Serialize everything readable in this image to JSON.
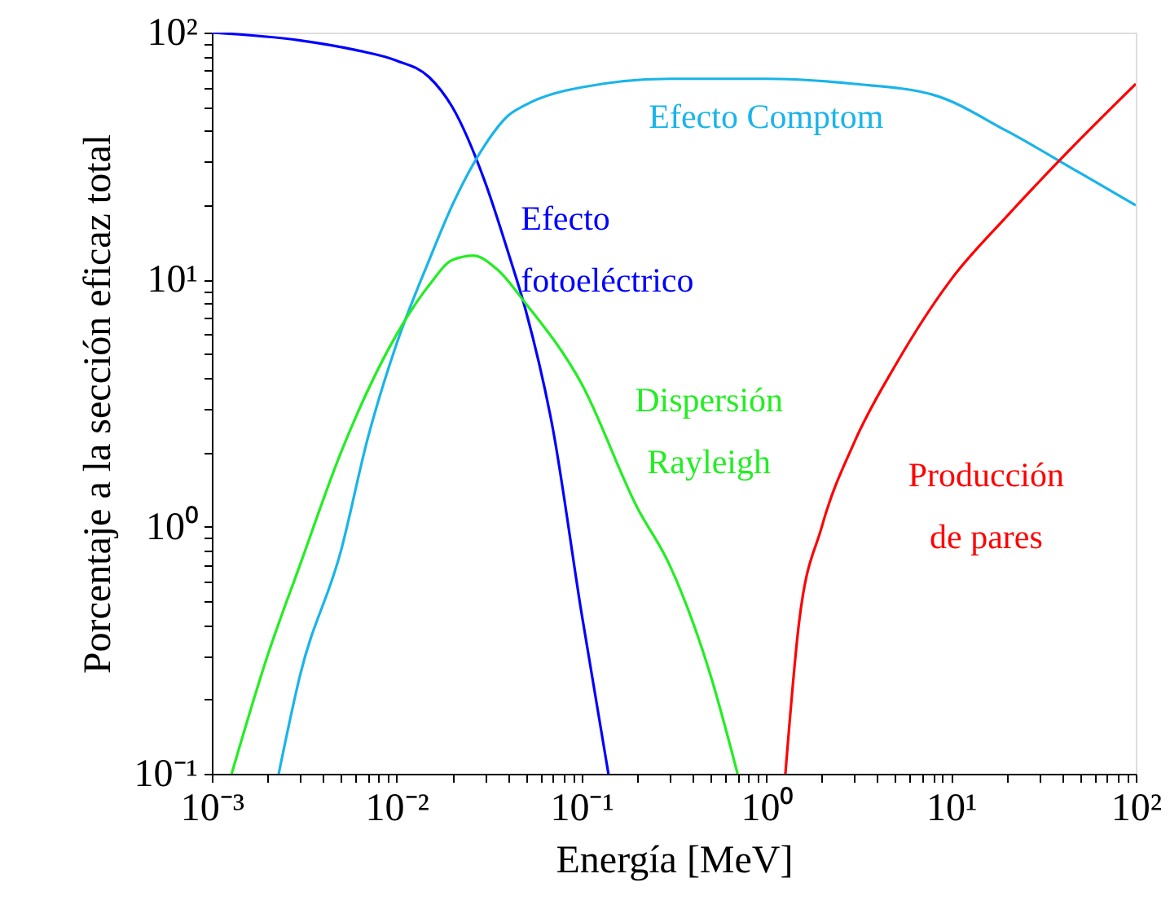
{
  "chart_data": {
    "type": "line",
    "xlabel": "Energía [MeV]",
    "ylabel": "Porcentaje a la sección eficaz total",
    "log": "xy",
    "grid": false,
    "legend": false,
    "line_style": "solid",
    "marker": "none",
    "xlim": [
      0.001,
      100
    ],
    "ylim": [
      0.1,
      100
    ],
    "xticks": [
      {
        "value": 0.001,
        "label": "10⁻³"
      },
      {
        "value": 0.002,
        "label": null
      },
      {
        "value": 0.003,
        "label": null
      },
      {
        "value": 0.004,
        "label": null
      },
      {
        "value": 0.005,
        "label": null
      },
      {
        "value": 0.006,
        "label": null
      },
      {
        "value": 0.007,
        "label": null
      },
      {
        "value": 0.008,
        "label": null
      },
      {
        "value": 0.009,
        "label": null
      },
      {
        "value": 0.01,
        "label": "10⁻²"
      },
      {
        "value": 0.02,
        "label": null
      },
      {
        "value": 0.03,
        "label": null
      },
      {
        "value": 0.04,
        "label": null
      },
      {
        "value": 0.05,
        "label": null
      },
      {
        "value": 0.06,
        "label": null
      },
      {
        "value": 0.07,
        "label": null
      },
      {
        "value": 0.08,
        "label": null
      },
      {
        "value": 0.09,
        "label": null
      },
      {
        "value": 0.1,
        "label": "10⁻¹"
      },
      {
        "value": 0.2,
        "label": null
      },
      {
        "value": 0.3,
        "label": null
      },
      {
        "value": 0.4,
        "label": null
      },
      {
        "value": 0.5,
        "label": null
      },
      {
        "value": 0.6,
        "label": null
      },
      {
        "value": 0.7,
        "label": null
      },
      {
        "value": 0.8,
        "label": null
      },
      {
        "value": 0.9,
        "label": null
      },
      {
        "value": 1,
        "label": "10⁰"
      },
      {
        "value": 2,
        "label": null
      },
      {
        "value": 3,
        "label": null
      },
      {
        "value": 4,
        "label": null
      },
      {
        "value": 5,
        "label": null
      },
      {
        "value": 6,
        "label": null
      },
      {
        "value": 7,
        "label": null
      },
      {
        "value": 8,
        "label": null
      },
      {
        "value": 9,
        "label": null
      },
      {
        "value": 10,
        "label": "10¹"
      },
      {
        "value": 20,
        "label": null
      },
      {
        "value": 30,
        "label": null
      },
      {
        "value": 40,
        "label": null
      },
      {
        "value": 50,
        "label": null
      },
      {
        "value": 60,
        "label": null
      },
      {
        "value": 70,
        "label": null
      },
      {
        "value": 80,
        "label": null
      },
      {
        "value": 90,
        "label": null
      },
      {
        "value": 100,
        "label": "10²"
      }
    ],
    "yticks": [
      {
        "value": 0.1,
        "label": "10⁻¹"
      },
      {
        "value": 0.2,
        "label": null
      },
      {
        "value": 0.3,
        "label": null
      },
      {
        "value": 0.4,
        "label": null
      },
      {
        "value": 0.5,
        "label": null
      },
      {
        "value": 0.6,
        "label": null
      },
      {
        "value": 0.7,
        "label": null
      },
      {
        "value": 0.8,
        "label": null
      },
      {
        "value": 0.9,
        "label": null
      },
      {
        "value": 1,
        "label": "10⁰"
      },
      {
        "value": 2,
        "label": null
      },
      {
        "value": 3,
        "label": null
      },
      {
        "value": 4,
        "label": null
      },
      {
        "value": 5,
        "label": null
      },
      {
        "value": 6,
        "label": null
      },
      {
        "value": 7,
        "label": null
      },
      {
        "value": 8,
        "label": null
      },
      {
        "value": 9,
        "label": null
      },
      {
        "value": 10,
        "label": "10¹"
      },
      {
        "value": 20,
        "label": null
      },
      {
        "value": 30,
        "label": null
      },
      {
        "value": 40,
        "label": null
      },
      {
        "value": 50,
        "label": null
      },
      {
        "value": 60,
        "label": null
      },
      {
        "value": 70,
        "label": null
      },
      {
        "value": 80,
        "label": null
      },
      {
        "value": 90,
        "label": null
      },
      {
        "value": 100,
        "label": "10²"
      }
    ],
    "series": [
      {
        "name": "Efecto fotoeléctrico",
        "color": "#0000ff",
        "x": [
          0.001,
          0.003,
          0.006,
          0.01,
          0.015,
          0.02,
          0.03,
          0.04,
          0.05,
          0.07,
          0.1,
          0.14
        ],
        "values": [
          100,
          93,
          85,
          77,
          66,
          50,
          25,
          13,
          7.5,
          2.5,
          0.45,
          0.1
        ]
      },
      {
        "name": "Efecto Comptom",
        "color": "#19b4ea",
        "x": [
          0.0023,
          0.003,
          0.005,
          0.007,
          0.01,
          0.015,
          0.02,
          0.03,
          0.04,
          0.05,
          0.1,
          0.3,
          1,
          3,
          8,
          20,
          50,
          100
        ],
        "values": [
          0.1,
          0.25,
          0.8,
          2.3,
          5.5,
          12,
          20,
          35,
          46,
          51,
          60,
          65,
          65,
          62,
          56,
          40,
          27,
          20
        ]
      },
      {
        "name": "Dispersión Rayleigh",
        "color": "#22ee22",
        "x": [
          0.00128,
          0.002,
          0.003,
          0.005,
          0.01,
          0.015,
          0.02,
          0.026,
          0.035,
          0.05,
          0.1,
          0.2,
          0.3,
          0.5,
          0.7
        ],
        "values": [
          0.1,
          0.3,
          0.7,
          2,
          6,
          9.5,
          12,
          12.5,
          11,
          8,
          3.8,
          1.2,
          0.7,
          0.25,
          0.1
        ]
      },
      {
        "name": "Producción de pares",
        "color": "#ff0000",
        "x": [
          1.27,
          1.5,
          2,
          3,
          5,
          10,
          20,
          50,
          100
        ],
        "values": [
          0.1,
          0.4,
          1,
          2.2,
          4.5,
          10,
          18,
          37,
          62
        ]
      }
    ]
  }
}
